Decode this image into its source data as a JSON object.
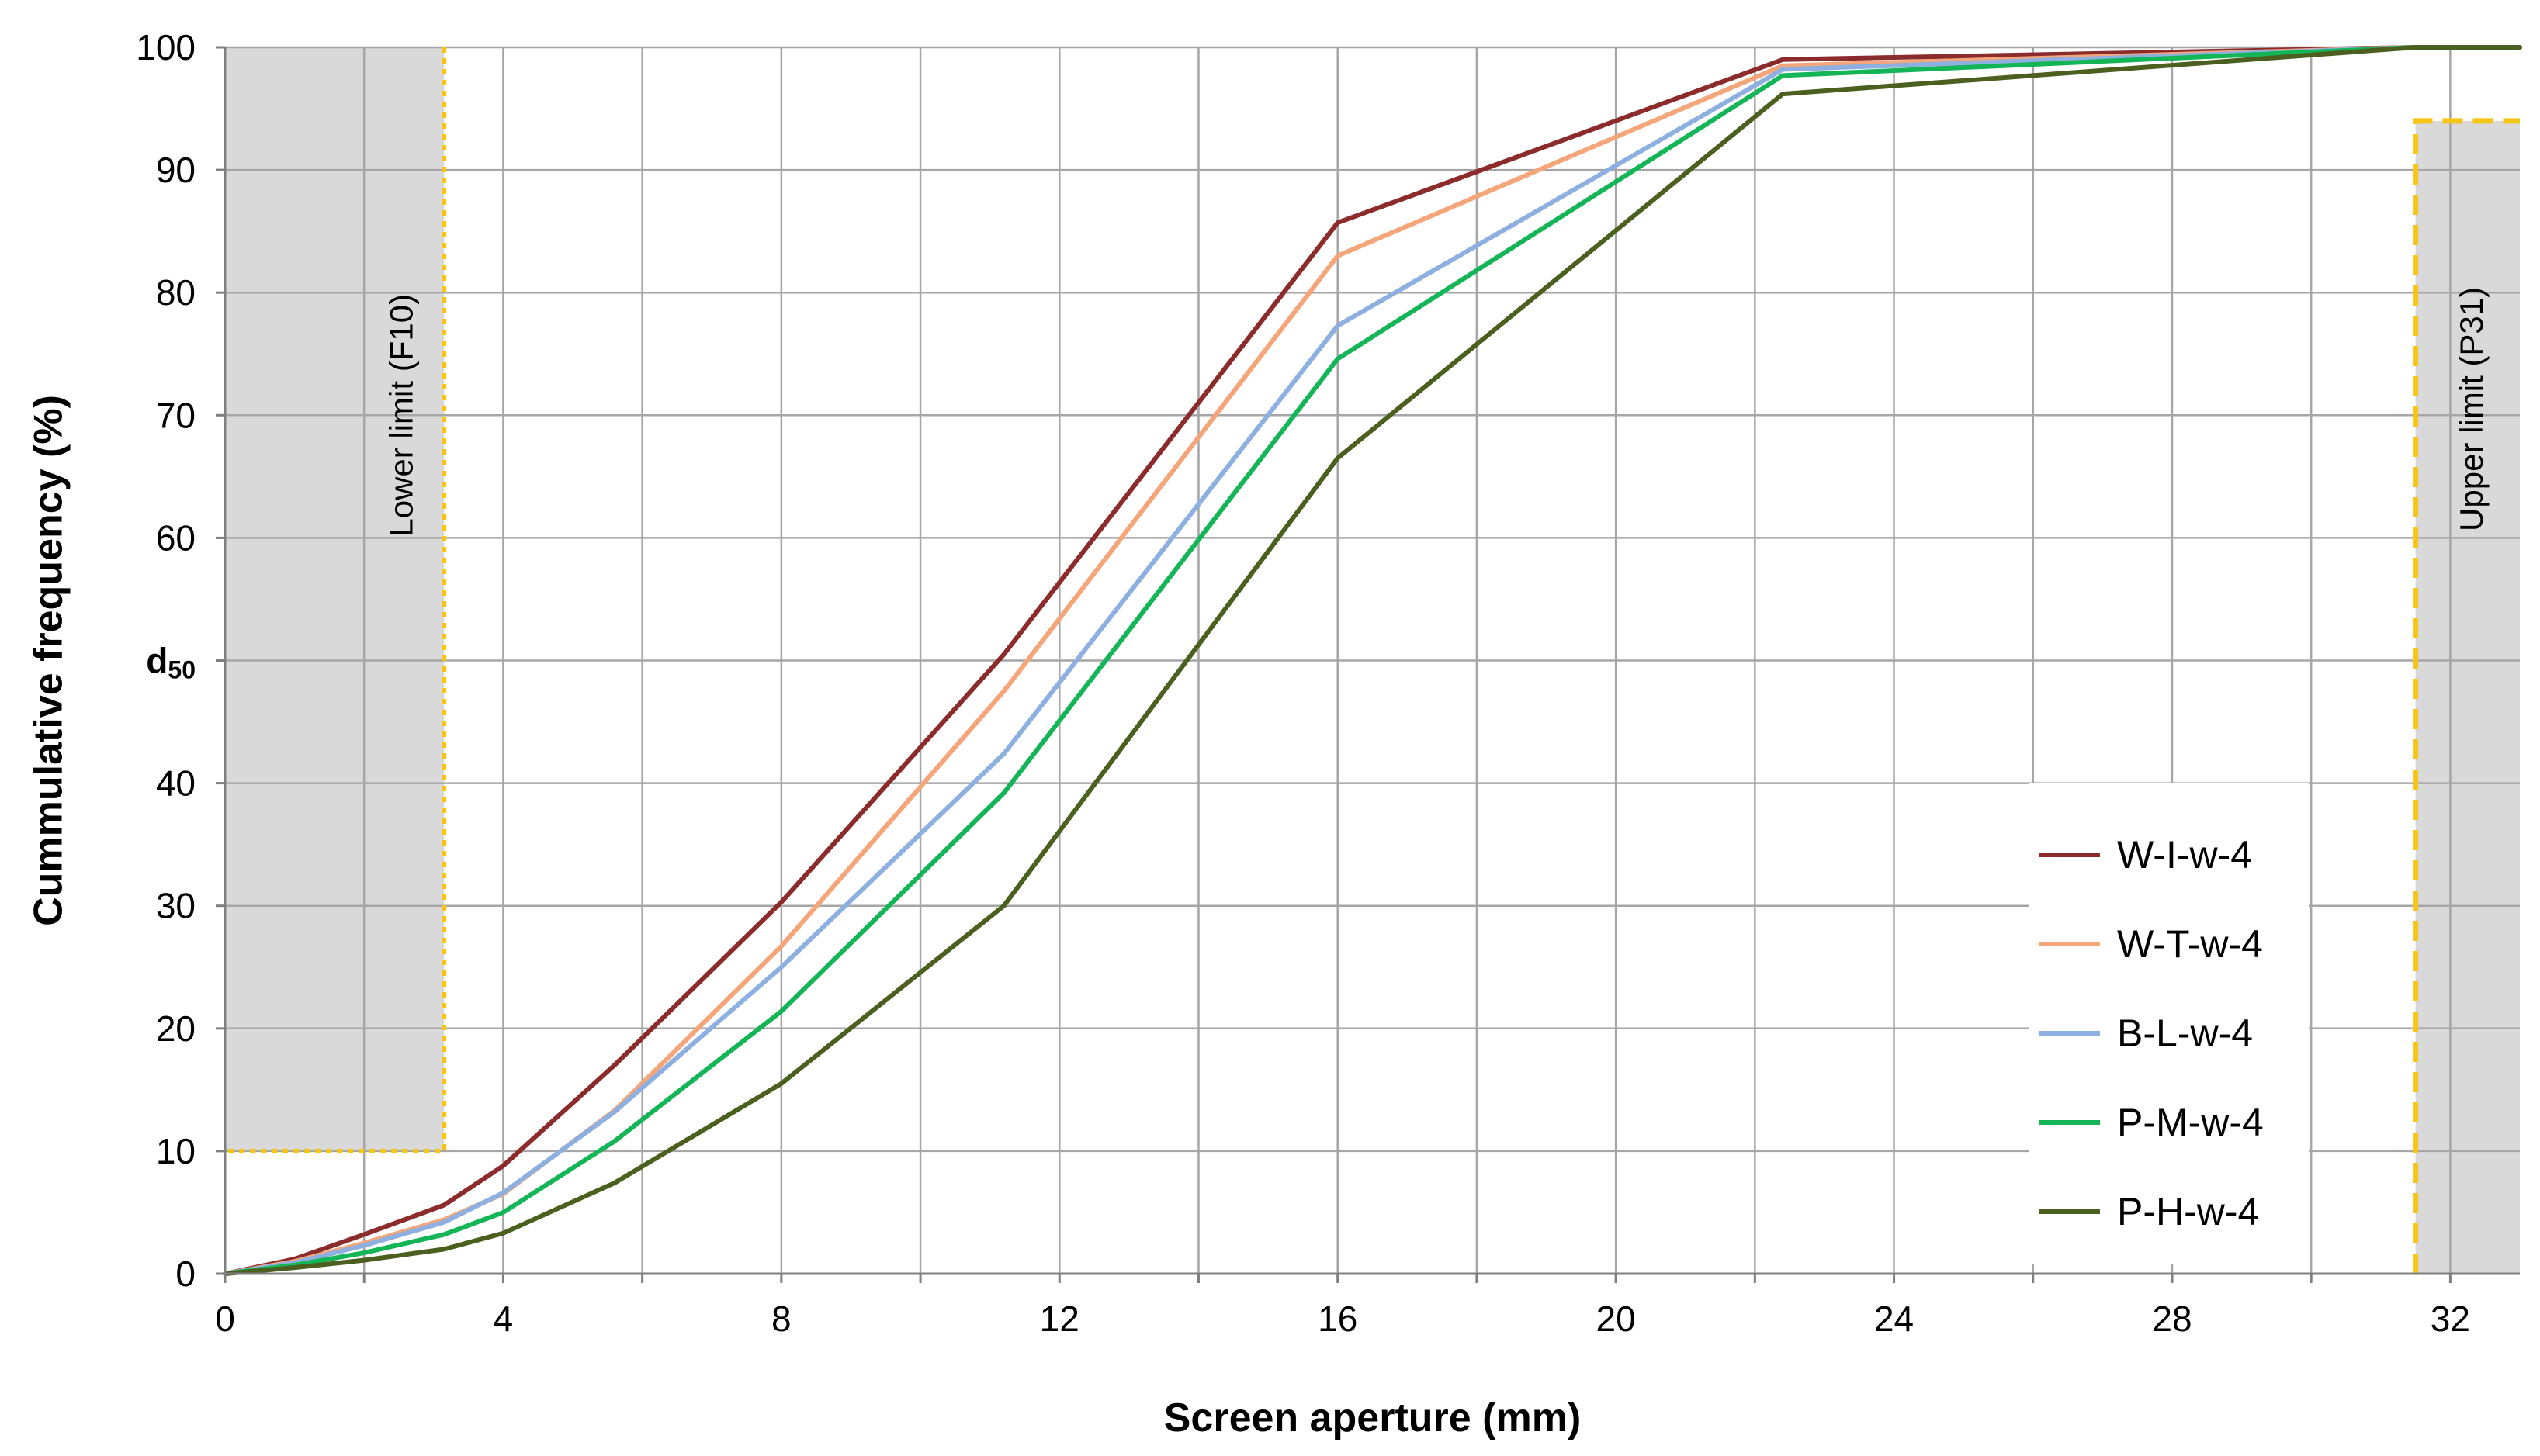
{
  "chart_data": {
    "type": "line",
    "title": "",
    "xlabel": "Screen aperture (mm)",
    "ylabel": "Cummulative frequency (%)",
    "xlim": [
      0,
      33
    ],
    "ylim": [
      0,
      100
    ],
    "x_ticks": [
      0,
      4,
      8,
      12,
      16,
      20,
      24,
      28,
      32
    ],
    "x_tick_labels": [
      "0",
      "4",
      "8",
      "12",
      "16",
      "20",
      "24",
      "28",
      "32"
    ],
    "y_ticks": [
      0,
      10,
      20,
      30,
      40,
      50,
      60,
      70,
      80,
      90,
      100
    ],
    "y_tick_labels": [
      "0",
      "10",
      "20",
      "30",
      "40",
      "d",
      "60",
      "70",
      "80",
      "90",
      "100"
    ],
    "y_tick_subscripts": [
      "",
      "",
      "",
      "",
      "",
      "50",
      "",
      "",
      "",
      "",
      ""
    ],
    "grid": true,
    "legend_position": "lower-right",
    "regions": [
      {
        "label": "Lower limit (F10)",
        "x": [
          0,
          3.15
        ],
        "y": [
          10,
          100
        ],
        "fill": "#d9d9d9",
        "border": "#f5c518",
        "border_style": "dotted"
      },
      {
        "label": "Upper limit (P31)",
        "x": [
          31.5,
          33
        ],
        "y": [
          0,
          94
        ],
        "fill": "#d9d9d9",
        "border": "#f5c518",
        "border_style": "dashed"
      }
    ],
    "x": [
      0,
      1,
      2,
      3.15,
      4,
      5.6,
      8,
      11.2,
      16,
      22.4,
      31.5,
      33
    ],
    "series": [
      {
        "name": "W-I-w-4",
        "color": "#8b2b2b",
        "values": [
          0,
          1.2,
          3.2,
          5.6,
          8.8,
          17,
          30.3,
          50.5,
          85.7,
          99.0,
          100,
          100
        ]
      },
      {
        "name": "W-T-w-4",
        "color": "#f4a67a",
        "values": [
          0,
          1.0,
          2.5,
          4.4,
          6.5,
          13.3,
          26.7,
          47.5,
          83.0,
          98.5,
          100,
          100
        ]
      },
      {
        "name": "B-L-w-4",
        "color": "#8eb0e0",
        "values": [
          0,
          0.9,
          2.3,
          4.2,
          6.6,
          13.2,
          25.0,
          42.4,
          77.3,
          98.2,
          100,
          100
        ]
      },
      {
        "name": "P-M-w-4",
        "color": "#13b556",
        "values": [
          0,
          0.7,
          1.7,
          3.2,
          5.0,
          10.8,
          21.4,
          39.2,
          74.6,
          97.7,
          100,
          100
        ]
      },
      {
        "name": "P-H-w-4",
        "color": "#4b5f1e",
        "values": [
          0,
          0.5,
          1.1,
          2.0,
          3.3,
          7.4,
          15.5,
          30.0,
          66.5,
          96.2,
          100,
          100
        ]
      }
    ]
  }
}
